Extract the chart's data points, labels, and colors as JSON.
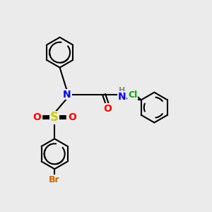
{
  "bg_color": "#ebebeb",
  "atom_colors": {
    "N": "#0000ff",
    "O": "#ff0000",
    "S": "#cccc00",
    "Cl": "#00aa00",
    "Br": "#cc6600",
    "H": "#888888",
    "C": "#000000"
  },
  "layout": {
    "xlim": [
      0,
      10
    ],
    "ylim": [
      0,
      10
    ]
  }
}
